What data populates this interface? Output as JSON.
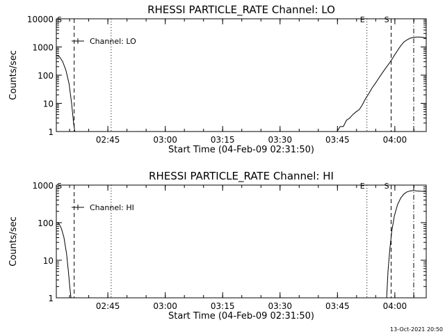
{
  "timestamp": "13-Oct-2021 20:50",
  "chart_data": [
    {
      "type": "line",
      "title": "RHESSI PARTICLE_RATE Channel: LO",
      "xlabel": "Start Time (04-Feb-09 02:31:50)",
      "ylabel": "Counts/sec",
      "y_scale": "log",
      "xlim": [
        0,
        5800
      ],
      "ylim": [
        1,
        10000
      ],
      "x_ticks": [
        {
          "t": 808,
          "label": "02:45"
        },
        {
          "t": 1708,
          "label": "03:00"
        },
        {
          "t": 2608,
          "label": "03:15"
        },
        {
          "t": 3508,
          "label": "03:30"
        },
        {
          "t": 4408,
          "label": "03:45"
        },
        {
          "t": 5308,
          "label": "04:00"
        }
      ],
      "y_ticks": [
        {
          "v": 1,
          "label": "1"
        },
        {
          "v": 10,
          "label": "10"
        },
        {
          "v": 100,
          "label": "100"
        },
        {
          "v": 1000,
          "label": "1000"
        },
        {
          "v": 10000,
          "label": "10000"
        }
      ],
      "legend": {
        "label": "Channel: LO",
        "position": "top-left"
      },
      "markers": [
        {
          "t": 280,
          "style": "dashed",
          "label": ""
        },
        {
          "t": 860,
          "style": "dotted",
          "label": ""
        },
        {
          "t": 4870,
          "style": "dotted",
          "label": "E"
        },
        {
          "t": 5250,
          "style": "dashed",
          "label": "S"
        },
        {
          "t": 5820,
          "style": "dashdot",
          "label": ""
        }
      ],
      "corner_label": "S",
      "series": [
        {
          "segments": [
            [
              [
                0,
                500
              ],
              [
                50,
                450
              ],
              [
                100,
                300
              ],
              [
                150,
                150
              ],
              [
                200,
                50
              ],
              [
                240,
                10
              ],
              [
                270,
                2
              ],
              [
                290,
                1
              ]
            ],
            [
              [
                4400,
                1
              ],
              [
                4450,
                1.5
              ],
              [
                4500,
                1.5
              ],
              [
                4550,
                2.5
              ],
              [
                4600,
                3
              ],
              [
                4650,
                4
              ],
              [
                4700,
                5
              ],
              [
                4750,
                6
              ],
              [
                4800,
                9
              ],
              [
                4850,
                15
              ],
              [
                4900,
                22
              ],
              [
                4950,
                35
              ],
              [
                5000,
                50
              ],
              [
                5050,
                75
              ],
              [
                5100,
                110
              ],
              [
                5150,
                160
              ],
              [
                5200,
                230
              ],
              [
                5250,
                330
              ],
              [
                5300,
                500
              ],
              [
                5350,
                750
              ],
              [
                5400,
                1100
              ],
              [
                5450,
                1500
              ],
              [
                5500,
                1800
              ],
              [
                5550,
                2050
              ],
              [
                5600,
                2200
              ],
              [
                5650,
                2250
              ],
              [
                5700,
                2250
              ],
              [
                5750,
                2200
              ],
              [
                5800,
                2100
              ]
            ]
          ]
        }
      ]
    },
    {
      "type": "line",
      "title": "RHESSI PARTICLE_RATE Channel: HI",
      "xlabel": "Start Time (04-Feb-09 02:31:50)",
      "ylabel": "Counts/sec",
      "y_scale": "log",
      "xlim": [
        0,
        5800
      ],
      "ylim": [
        1,
        1000
      ],
      "x_ticks": [
        {
          "t": 808,
          "label": "02:45"
        },
        {
          "t": 1708,
          "label": "03:00"
        },
        {
          "t": 2608,
          "label": "03:15"
        },
        {
          "t": 3508,
          "label": "03:30"
        },
        {
          "t": 4408,
          "label": "03:45"
        },
        {
          "t": 5308,
          "label": "04:00"
        }
      ],
      "y_ticks": [
        {
          "v": 1,
          "label": "1"
        },
        {
          "v": 10,
          "label": "10"
        },
        {
          "v": 100,
          "label": "100"
        },
        {
          "v": 1000,
          "label": "1000"
        }
      ],
      "legend": {
        "label": "Channel: HI",
        "position": "top-left"
      },
      "markers": [
        {
          "t": 280,
          "style": "dashed",
          "label": ""
        },
        {
          "t": 860,
          "style": "dotted",
          "label": ""
        },
        {
          "t": 4870,
          "style": "dotted",
          "label": "E"
        },
        {
          "t": 5250,
          "style": "dashed",
          "label": "S"
        },
        {
          "t": 5820,
          "style": "dashdot",
          "label": ""
        }
      ],
      "corner_label": "S",
      "series": [
        {
          "segments": [
            [
              [
                0,
                100
              ],
              [
                40,
                95
              ],
              [
                80,
                70
              ],
              [
                120,
                40
              ],
              [
                160,
                15
              ],
              [
                190,
                5
              ],
              [
                210,
                2
              ],
              [
                230,
                1
              ]
            ],
            [
              [
                5180,
                1
              ],
              [
                5200,
                5
              ],
              [
                5230,
                20
              ],
              [
                5260,
                60
              ],
              [
                5300,
                150
              ],
              [
                5350,
                300
              ],
              [
                5400,
                450
              ],
              [
                5450,
                580
              ],
              [
                5500,
                660
              ],
              [
                5550,
                700
              ],
              [
                5600,
                720
              ],
              [
                5650,
                700
              ],
              [
                5700,
                690
              ],
              [
                5750,
                680
              ],
              [
                5800,
                680
              ]
            ]
          ]
        }
      ]
    }
  ]
}
